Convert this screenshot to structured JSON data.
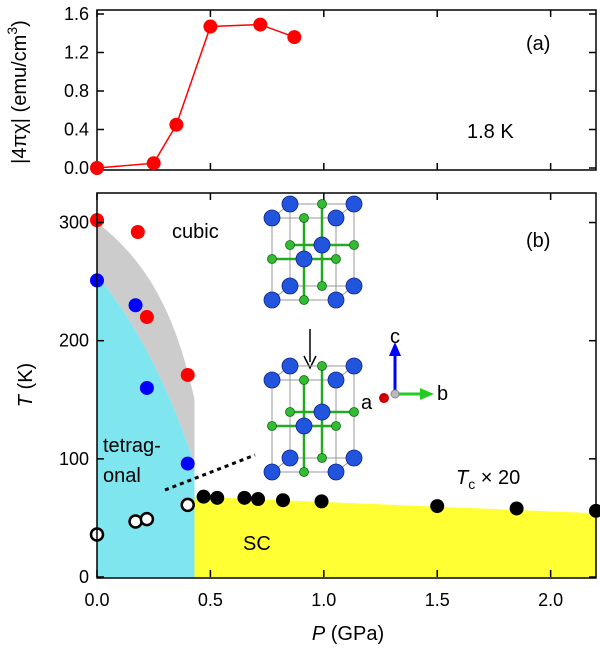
{
  "chart_data": [
    {
      "panel": "(a)",
      "type": "line",
      "ylabel": "|4πχ| (emu/cm",
      "ylabel_sup": "3",
      "ylabel_close": ")",
      "annotation": "1.8 K",
      "xlim": [
        0,
        2.2
      ],
      "ylim": [
        0,
        1.6
      ],
      "yticks": [
        0.0,
        0.4,
        0.8,
        1.2,
        1.6
      ],
      "ytick_labels": [
        "0.0",
        "0.4",
        "0.8",
        "1.2",
        "1.6"
      ],
      "color": "#ff0000",
      "x": [
        0.0,
        0.25,
        0.35,
        0.5,
        0.72,
        0.87
      ],
      "y": [
        0.0,
        0.05,
        0.45,
        1.47,
        1.49,
        1.36
      ]
    },
    {
      "panel": "(b)",
      "type": "scatter",
      "xlabel": "P",
      "xlabel_unit": " (GPa)",
      "ylabel": "T",
      "ylabel_unit": " (K)",
      "xlim": [
        0,
        2.2
      ],
      "ylim": [
        0,
        325
      ],
      "xticks": [
        0.0,
        0.5,
        1.0,
        1.5,
        2.0
      ],
      "xtick_labels": [
        "0.0",
        "0.5",
        "1.0",
        "1.5",
        "2.0"
      ],
      "yticks": [
        0,
        100,
        200,
        300
      ],
      "ytick_labels": [
        "0",
        "100",
        "200",
        "300"
      ],
      "series": [
        {
          "color": "#ff0000",
          "x": [
            0.0,
            0.18,
            0.22,
            0.4
          ],
          "y": [
            302,
            292,
            220,
            171
          ]
        },
        {
          "color": "#0000ff",
          "x": [
            0.0,
            0.17,
            0.22,
            0.4
          ],
          "y": [
            251,
            230,
            160,
            96
          ]
        },
        {
          "color": "#000000",
          "fill": "#ffffff",
          "x": [
            0.0,
            0.17,
            0.22,
            0.4
          ],
          "y": [
            36,
            47,
            49,
            61
          ]
        },
        {
          "color": "#000000",
          "x": [
            0.47,
            0.53,
            0.65,
            0.71,
            0.82,
            0.99,
            1.5,
            1.85,
            2.2
          ],
          "y": [
            68,
            67,
            67,
            66,
            65,
            64,
            60,
            58,
            56
          ]
        }
      ],
      "regions": {
        "cubic": {
          "label": "cubic",
          "color": "#cccccc"
        },
        "tetragonal": {
          "label_1": "tetrag-",
          "label_2": "onal",
          "color": "#7fe5ee"
        },
        "sc": {
          "label": "SC",
          "color": "#ffff33"
        }
      },
      "tc_label": "T",
      "tc_sub": "c",
      "tc_suffix": " × 20",
      "axis_labels_3d": {
        "c": "c",
        "a": "a",
        "b": "b"
      },
      "panel_label": "(b)"
    }
  ]
}
